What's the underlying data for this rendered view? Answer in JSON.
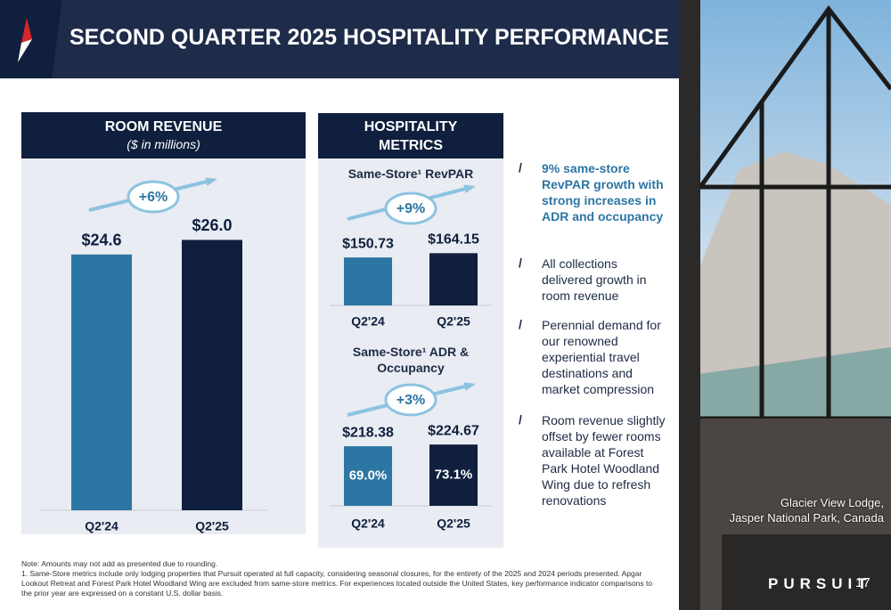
{
  "header": {
    "title": "SECOND QUARTER 2025 HOSPITALITY PERFORMANCE"
  },
  "panel_title": "HOSPITALITY METRICS",
  "chart_data": [
    {
      "type": "bar",
      "title": "ROOM REVENUE",
      "subtitle": "($ in millions)",
      "categories": [
        "Q2'24",
        "Q2'25"
      ],
      "values": [
        24.6,
        26.0
      ],
      "value_labels": [
        "$24.6",
        "$26.0"
      ],
      "colors": [
        "#2c76a3",
        "#0f1f3d"
      ],
      "ylim": [
        0,
        34
      ],
      "annotation": "+6%"
    },
    {
      "type": "bar",
      "title": "Same-Store¹ RevPAR",
      "categories": [
        "Q2'24",
        "Q2'25"
      ],
      "values": [
        150.73,
        164.15
      ],
      "value_labels": [
        "$150.73",
        "$164.15"
      ],
      "colors": [
        "#2c76a3",
        "#0f1f3d"
      ],
      "ylim": [
        0,
        400
      ],
      "annotation": "+9%"
    },
    {
      "type": "bar",
      "title": "Same-Store¹ ADR & Occupancy",
      "categories": [
        "Q2'24",
        "Q2'25"
      ],
      "values": [
        218.38,
        224.67
      ],
      "value_labels": [
        "$218.38",
        "$224.67"
      ],
      "inner_values": [
        69.0,
        73.1
      ],
      "inner_labels": [
        "69.0%",
        "73.1%"
      ],
      "colors": [
        "#2c76a3",
        "#0f1f3d"
      ],
      "ylim": [
        0,
        320
      ],
      "annotation": "+3%"
    }
  ],
  "bullets": [
    "9% same-store RevPAR growth with strong increases in ADR and occupancy",
    "All collections delivered growth in room revenue",
    "Perennial demand for our renowned experiential travel destinations and market compression",
    "Room revenue slightly offset by fewer rooms available at Forest Park Hotel Woodland Wing due to refresh renovations"
  ],
  "caption": [
    "Glacier View Lodge,",
    "Jasper National Park, Canada"
  ],
  "notes": [
    "Note: Amounts may not add as presented due to rounding.",
    "1. Same-Store metrics include only lodging properties that Pursuit operated at full capacity, considering seasonal closures, for the entirety of the 2025 and 2024 periods presented. Apgar Lookout Retreat and Forest Park Hotel Woodland Wing are excluded from same-store metrics. For experiences located outside the United States, key performance indicator comparisons to the prior year are expressed on a constant U.S. dollar basis."
  ],
  "footer": {
    "logo": "PURSUIT",
    "page": "17"
  }
}
